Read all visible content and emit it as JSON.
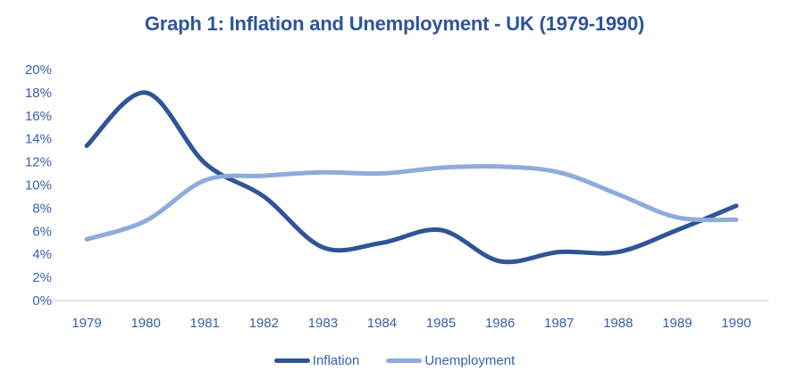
{
  "chart_data": {
    "type": "line",
    "title": "Graph 1: Inflation and Unemployment - UK (1979-1990)",
    "categories": [
      "1979",
      "1980",
      "1981",
      "1982",
      "1983",
      "1984",
      "1985",
      "1986",
      "1987",
      "1988",
      "1989",
      "1990"
    ],
    "series": [
      {
        "name": "Inflation",
        "color": "#2F5597",
        "values": [
          13.4,
          18.0,
          11.9,
          9.0,
          4.6,
          5.0,
          6.1,
          3.4,
          4.2,
          4.2,
          6.1,
          8.2
        ]
      },
      {
        "name": "Unemployment",
        "color": "#8FAADC",
        "values": [
          5.3,
          6.9,
          10.4,
          10.8,
          11.1,
          11.0,
          11.5,
          11.6,
          11.1,
          9.2,
          7.2,
          7.0
        ]
      }
    ],
    "xlabel": "",
    "ylabel": "",
    "ylim": [
      0,
      20
    ],
    "yticks": [
      "0%",
      "2%",
      "4%",
      "6%",
      "8%",
      "10%",
      "12%",
      "14%",
      "16%",
      "18%",
      "20%"
    ],
    "grid": false,
    "smoothed": true,
    "legend_position": "bottom",
    "title_color": "#2E5597",
    "tick_label_color": "#3761AE",
    "axis_color": "#D9D9D9"
  }
}
